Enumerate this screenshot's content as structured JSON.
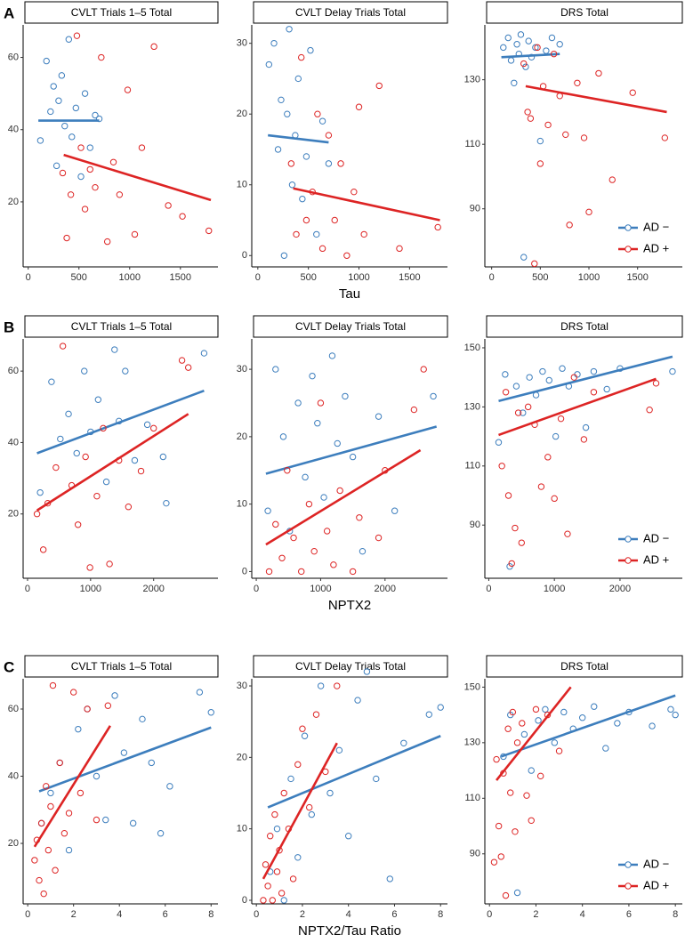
{
  "chart_data": [
    {
      "type": "scatter",
      "panel_label": "A",
      "title": "CVLT Trials 1–5 Total",
      "xlim": [
        -50,
        1870
      ],
      "ylim": [
        2,
        69
      ],
      "xticks": [
        0,
        500,
        1000,
        1500
      ],
      "yticks": [
        20,
        40,
        60
      ],
      "series": [
        {
          "color": "#3d7ebd",
          "x": [
            120,
            180,
            220,
            250,
            280,
            300,
            330,
            360,
            400,
            430,
            470,
            520,
            560,
            610,
            660,
            700
          ],
          "values": [
            37,
            59,
            45,
            52,
            30,
            48,
            55,
            41,
            65,
            38,
            46,
            27,
            50,
            35,
            44,
            43
          ],
          "fit_x": [
            100,
            700
          ],
          "fit_values": [
            42.5,
            42.5
          ]
        },
        {
          "color": "#dd2424",
          "x": [
            340,
            380,
            420,
            480,
            520,
            560,
            610,
            660,
            720,
            780,
            840,
            900,
            980,
            1050,
            1120,
            1240,
            1380,
            1520,
            1780
          ],
          "values": [
            28,
            10,
            22,
            66,
            35,
            18,
            29,
            24,
            60,
            9,
            31,
            22,
            51,
            11,
            35,
            63,
            19,
            16,
            12
          ],
          "fit_x": [
            350,
            1800
          ],
          "fit_values": [
            33,
            20.5
          ]
        }
      ]
    },
    {
      "type": "scatter",
      "title": "CVLT Delay Trials Total",
      "xlabel": "Tau",
      "xlim": [
        -60,
        1875
      ],
      "ylim": [
        -1.6,
        32.6
      ],
      "xticks": [
        0,
        500,
        1000,
        1500
      ],
      "yticks": [
        0,
        10,
        20,
        30
      ],
      "series": [
        {
          "color": "#3d7ebd",
          "x": [
            110,
            160,
            200,
            230,
            260,
            290,
            310,
            340,
            370,
            400,
            440,
            480,
            520,
            580,
            640,
            700
          ],
          "values": [
            27,
            30,
            15,
            22,
            0,
            20,
            32,
            10,
            17,
            25,
            8,
            14,
            29,
            3,
            19,
            13
          ],
          "fit_x": [
            100,
            700
          ],
          "fit_values": [
            17,
            16
          ]
        },
        {
          "color": "#dd2424",
          "x": [
            330,
            380,
            430,
            480,
            540,
            590,
            640,
            700,
            760,
            820,
            880,
            950,
            1000,
            1050,
            1200,
            1400,
            1780
          ],
          "values": [
            13,
            3,
            28,
            5,
            9,
            20,
            1,
            17,
            5,
            13,
            0,
            9,
            21,
            3,
            24,
            1,
            4
          ],
          "fit_x": [
            350,
            1800
          ],
          "fit_values": [
            9.5,
            5
          ]
        }
      ]
    },
    {
      "type": "scatter",
      "title": "DRS Total",
      "xlim": [
        -70,
        1960
      ],
      "ylim": [
        72,
        147
      ],
      "xticks": [
        0,
        500,
        1000,
        1500
      ],
      "yticks": [
        90,
        110,
        130
      ],
      "legend": "bottom-right",
      "series": [
        {
          "name": "AD −",
          "color": "#3d7ebd",
          "x": [
            120,
            170,
            200,
            230,
            260,
            280,
            300,
            330,
            350,
            380,
            410,
            450,
            500,
            560,
            620,
            700
          ],
          "values": [
            140,
            143,
            136,
            129,
            141,
            138,
            144,
            75,
            134,
            142,
            137,
            140,
            111,
            139,
            143,
            141
          ],
          "fit_x": [
            100,
            700
          ],
          "fit_values": [
            137,
            138
          ]
        },
        {
          "name": "AD +",
          "color": "#dd2424",
          "x": [
            330,
            370,
            400,
            440,
            470,
            500,
            530,
            580,
            640,
            700,
            760,
            800,
            880,
            950,
            1000,
            1100,
            1240,
            1450,
            1780
          ],
          "values": [
            135,
            120,
            118,
            73,
            140,
            104,
            128,
            116,
            138,
            125,
            113,
            85,
            129,
            112,
            89,
            132,
            99,
            126,
            112
          ],
          "fit_x": [
            350,
            1800
          ],
          "fit_values": [
            128,
            120
          ]
        }
      ]
    },
    {
      "type": "scatter",
      "panel_label": "B",
      "title": "CVLT Trials 1–5 Total",
      "xlim": [
        -70,
        3020
      ],
      "ylim": [
        2,
        69
      ],
      "xticks": [
        0,
        1000,
        2000
      ],
      "yticks": [
        20,
        40,
        60
      ],
      "series": [
        {
          "color": "#3d7ebd",
          "x": [
            200,
            380,
            520,
            650,
            780,
            900,
            1000,
            1120,
            1250,
            1380,
            1450,
            1550,
            1700,
            1900,
            2150,
            2200,
            2800
          ],
          "values": [
            26,
            57,
            41,
            48,
            37,
            60,
            43,
            52,
            29,
            66,
            46,
            60,
            35,
            45,
            36,
            23,
            65
          ],
          "fit_x": [
            150,
            2800
          ],
          "fit_values": [
            37,
            54.5
          ]
        },
        {
          "color": "#dd2424",
          "x": [
            150,
            250,
            320,
            450,
            560,
            700,
            800,
            920,
            990,
            1100,
            1200,
            1300,
            1450,
            1600,
            1800,
            2000,
            2450,
            2550
          ],
          "values": [
            20,
            10,
            23,
            33,
            67,
            28,
            17,
            36,
            5,
            25,
            44,
            6,
            35,
            22,
            32,
            44,
            63,
            61
          ],
          "fit_x": [
            150,
            2550
          ],
          "fit_values": [
            21,
            48
          ]
        }
      ]
    },
    {
      "type": "scatter",
      "title": "CVLT Delay Trials Total",
      "xlabel": "NPTX2",
      "xlim": [
        -70,
        2970
      ],
      "ylim": [
        -1,
        34.5
      ],
      "xticks": [
        0,
        1000,
        2000
      ],
      "yticks": [
        0,
        10,
        20,
        30
      ],
      "series": [
        {
          "color": "#3d7ebd",
          "x": [
            180,
            300,
            420,
            520,
            650,
            760,
            870,
            950,
            1050,
            1180,
            1260,
            1380,
            1500,
            1650,
            1900,
            2150,
            2750
          ],
          "values": [
            9,
            30,
            20,
            6,
            25,
            14,
            29,
            22,
            11,
            32,
            19,
            26,
            17,
            3,
            23,
            9,
            26
          ],
          "fit_x": [
            150,
            2800
          ],
          "fit_values": [
            14.5,
            21.5
          ]
        },
        {
          "color": "#dd2424",
          "x": [
            200,
            300,
            400,
            480,
            580,
            700,
            820,
            900,
            1000,
            1100,
            1200,
            1300,
            1500,
            1600,
            1900,
            2000,
            2450,
            2600
          ],
          "values": [
            0,
            7,
            2,
            15,
            5,
            0,
            10,
            3,
            25,
            6,
            1,
            12,
            0,
            8,
            5,
            15,
            24,
            30
          ],
          "fit_x": [
            150,
            2550
          ],
          "fit_values": [
            4,
            18
          ]
        }
      ]
    },
    {
      "type": "scatter",
      "title": "DRS Total",
      "xlim": [
        -60,
        2950
      ],
      "ylim": [
        72,
        153
      ],
      "xticks": [
        0,
        1000,
        2000
      ],
      "yticks": [
        90,
        110,
        130,
        150
      ],
      "legend": "bottom-right",
      "series": [
        {
          "name": "AD −",
          "color": "#3d7ebd",
          "x": [
            150,
            250,
            320,
            420,
            520,
            620,
            720,
            820,
            920,
            1020,
            1120,
            1220,
            1350,
            1480,
            1600,
            1800,
            2000,
            2800
          ],
          "values": [
            118,
            141,
            76,
            137,
            128,
            140,
            134,
            142,
            139,
            120,
            143,
            137,
            141,
            123,
            142,
            136,
            143,
            142
          ],
          "fit_x": [
            150,
            2800
          ],
          "fit_values": [
            132,
            147
          ]
        },
        {
          "name": "AD +",
          "color": "#dd2424",
          "x": [
            200,
            260,
            300,
            350,
            400,
            450,
            500,
            600,
            700,
            800,
            900,
            1000,
            1100,
            1200,
            1300,
            1450,
            1600,
            2450,
            2550
          ],
          "values": [
            110,
            135,
            100,
            77,
            89,
            128,
            84,
            130,
            124,
            103,
            113,
            99,
            126,
            87,
            140,
            119,
            135,
            129,
            138
          ],
          "fit_x": [
            150,
            2550
          ],
          "fit_values": [
            120.5,
            139.5
          ]
        }
      ]
    },
    {
      "type": "scatter",
      "panel_label": "C",
      "title": "CVLT Trials 1–5 Total",
      "xlim": [
        -0.2,
        8.3
      ],
      "ylim": [
        2,
        69
      ],
      "xticks": [
        0,
        2,
        4,
        6,
        8
      ],
      "yticks": [
        20,
        40,
        60
      ],
      "series": [
        {
          "color": "#3d7ebd",
          "x": [
            0.6,
            1.0,
            1.4,
            1.8,
            2.2,
            2.6,
            3.0,
            3.4,
            3.8,
            4.2,
            4.6,
            5.0,
            5.4,
            5.8,
            6.2,
            7.5,
            8.0
          ],
          "values": [
            26,
            35,
            44,
            18,
            54,
            60,
            40,
            27,
            64,
            47,
            26,
            57,
            44,
            23,
            37,
            65,
            59
          ],
          "fit_x": [
            0.5,
            8
          ],
          "fit_values": [
            35.5,
            54.5
          ]
        },
        {
          "color": "#dd2424",
          "x": [
            0.3,
            0.4,
            0.5,
            0.6,
            0.7,
            0.8,
            0.9,
            1.0,
            1.1,
            1.2,
            1.4,
            1.6,
            1.8,
            2.0,
            2.3,
            2.6,
            3.0,
            3.5
          ],
          "values": [
            15,
            21,
            9,
            26,
            5,
            37,
            18,
            31,
            67,
            12,
            44,
            23,
            29,
            65,
            35,
            60,
            27,
            61
          ],
          "fit_x": [
            0.3,
            3.6
          ],
          "fit_values": [
            19,
            55
          ]
        }
      ]
    },
    {
      "type": "scatter",
      "title": "CVLT Delay Trials Total",
      "xlabel": "NPTX2/Tau Ratio",
      "xlim": [
        -0.2,
        8.3
      ],
      "ylim": [
        -0.5,
        31
      ],
      "xticks": [
        0,
        2,
        4,
        6,
        8
      ],
      "yticks": [
        0,
        10,
        20,
        30
      ],
      "series": [
        {
          "color": "#3d7ebd",
          "x": [
            0.6,
            0.9,
            1.2,
            1.5,
            1.8,
            2.1,
            2.4,
            2.8,
            3.2,
            3.6,
            4.0,
            4.4,
            4.8,
            5.2,
            5.8,
            6.4,
            7.5,
            8.0
          ],
          "values": [
            4,
            10,
            0,
            17,
            6,
            23,
            12,
            30,
            15,
            21,
            9,
            28,
            32,
            17,
            3,
            22,
            26,
            27
          ],
          "fit_x": [
            0.5,
            8
          ],
          "fit_values": [
            13,
            23
          ]
        },
        {
          "color": "#dd2424",
          "x": [
            0.3,
            0.4,
            0.5,
            0.6,
            0.7,
            0.8,
            0.9,
            1.0,
            1.1,
            1.2,
            1.4,
            1.6,
            1.8,
            2.0,
            2.3,
            2.6,
            3.0,
            3.5
          ],
          "values": [
            0,
            5,
            2,
            9,
            0,
            12,
            4,
            7,
            1,
            15,
            10,
            3,
            19,
            24,
            13,
            26,
            18,
            30
          ],
          "fit_x": [
            0.3,
            3.5
          ],
          "fit_values": [
            3,
            22
          ]
        }
      ]
    },
    {
      "type": "scatter",
      "title": "DRS Total",
      "xlim": [
        -0.2,
        8.3
      ],
      "ylim": [
        72,
        153
      ],
      "xticks": [
        0,
        2,
        4,
        6,
        8
      ],
      "yticks": [
        90,
        110,
        130,
        150
      ],
      "legend": "bottom-right",
      "series": [
        {
          "name": "AD −",
          "color": "#3d7ebd",
          "x": [
            0.6,
            0.9,
            1.2,
            1.5,
            1.8,
            2.1,
            2.4,
            2.8,
            3.2,
            3.6,
            4.0,
            4.5,
            5.0,
            5.5,
            6.0,
            7.0,
            7.8,
            8.0
          ],
          "values": [
            125,
            140,
            76,
            133,
            120,
            138,
            142,
            130,
            141,
            135,
            139,
            143,
            128,
            137,
            141,
            136,
            142,
            140
          ],
          "fit_x": [
            0.5,
            8
          ],
          "fit_values": [
            125,
            147
          ]
        },
        {
          "name": "AD +",
          "color": "#dd2424",
          "x": [
            0.2,
            0.3,
            0.4,
            0.5,
            0.6,
            0.7,
            0.8,
            0.9,
            1.0,
            1.1,
            1.2,
            1.4,
            1.6,
            1.8,
            2.0,
            2.2,
            2.5,
            3.0
          ],
          "values": [
            87,
            124,
            100,
            89,
            119,
            75,
            135,
            112,
            141,
            98,
            130,
            137,
            111,
            102,
            142,
            118,
            140,
            127
          ],
          "fit_x": [
            0.3,
            3.5
          ],
          "fit_values": [
            116.5,
            150
          ]
        }
      ]
    }
  ]
}
